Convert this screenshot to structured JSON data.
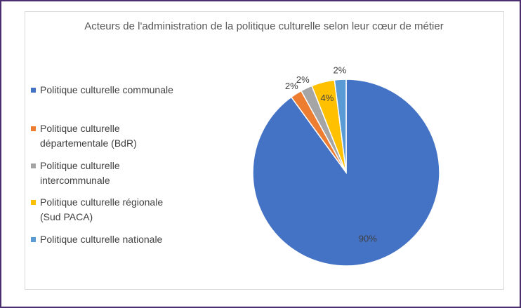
{
  "chart_data": {
    "type": "pie",
    "title": "Acteurs de l'administration de la politique culturelle selon leur cœur de métier",
    "categories": [
      "Politique culturelle communale",
      "Politique culturelle départementale (BdR)",
      "Politique culturelle intercommunale",
      "Politique culturelle régionale (Sud PACA)",
      "Politique culturelle nationale"
    ],
    "values": [
      90,
      2,
      2,
      4,
      2
    ],
    "value_labels": [
      "90%",
      "2%",
      "2%",
      "4%",
      "2%"
    ],
    "colors": [
      "#4472c4",
      "#ed7d31",
      "#a5a5a5",
      "#ffc000",
      "#5b9bd5"
    ],
    "legend": "left"
  }
}
